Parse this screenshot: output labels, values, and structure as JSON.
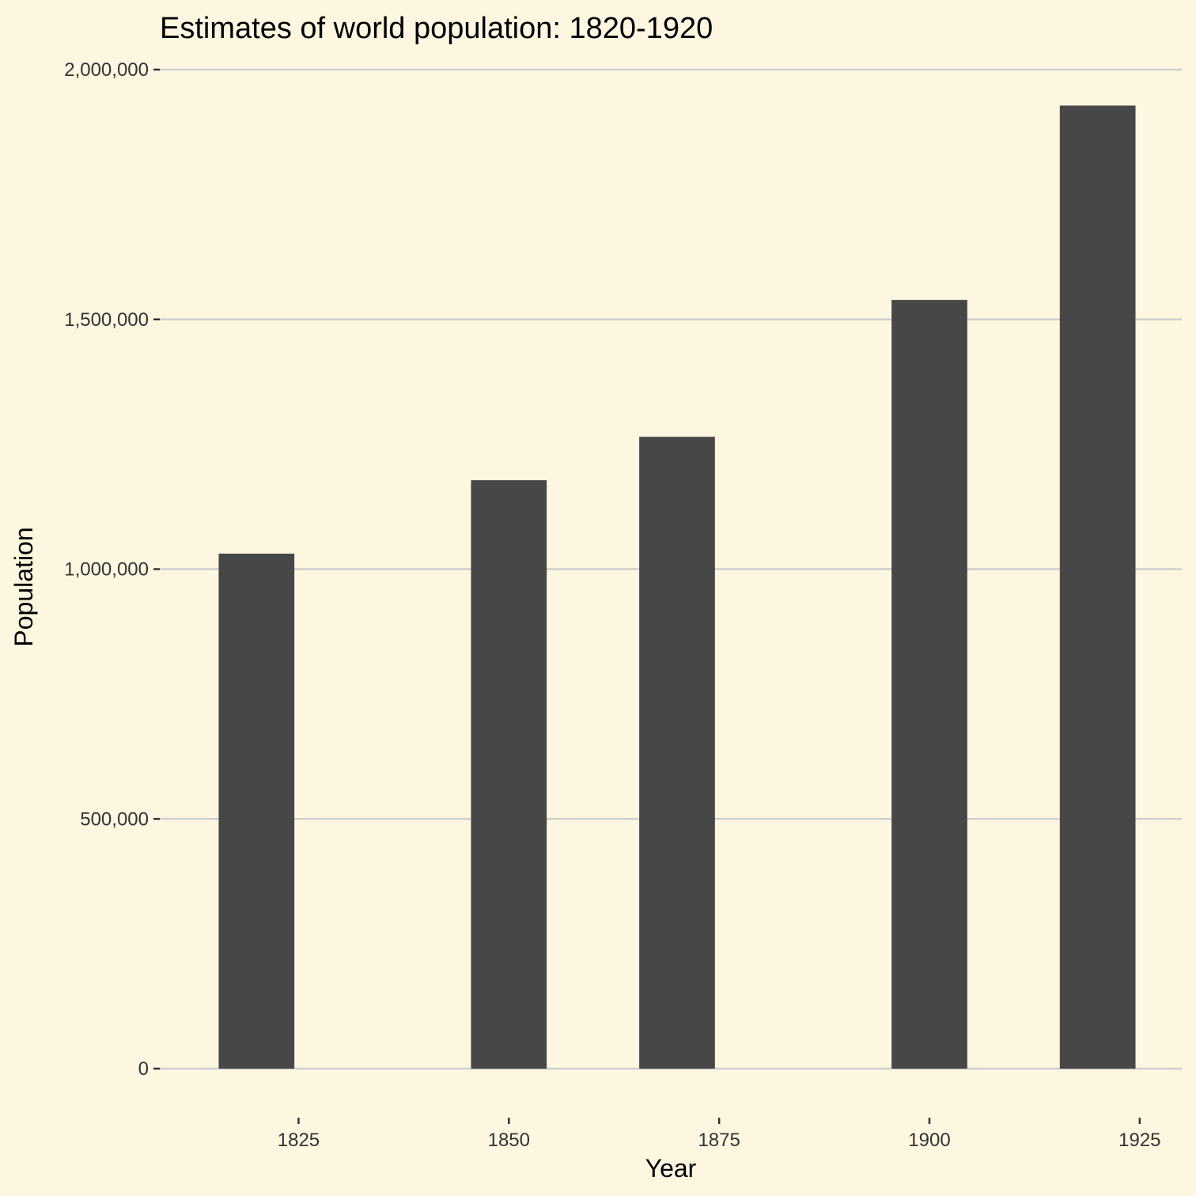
{
  "chart_data": {
    "type": "bar",
    "title": "Estimates of world population: 1820-1920",
    "xlabel": "Year",
    "ylabel": "Population",
    "x": [
      1820,
      1850,
      1870,
      1900,
      1920
    ],
    "values": [
      1031000,
      1178000,
      1265000,
      1539000,
      1928000
    ],
    "xlim": [
      1808.5,
      1930
    ],
    "ylim": [
      0,
      2000000
    ],
    "xticks": [
      1825,
      1850,
      1875,
      1900,
      1925
    ],
    "xtick_labels": [
      "1825",
      "1850",
      "1875",
      "1900",
      "1925"
    ],
    "yticks": [
      0,
      500000,
      1000000,
      1500000,
      2000000
    ],
    "ytick_labels": [
      "0",
      "500,000",
      "1,000,000",
      "1,500,000",
      "2,000,000"
    ],
    "bar_width_years": 9,
    "grid": "horizontal-major",
    "bar_color": "#474747",
    "background_color": "#fdf6e0",
    "grid_color": "#cfcfcf"
  }
}
